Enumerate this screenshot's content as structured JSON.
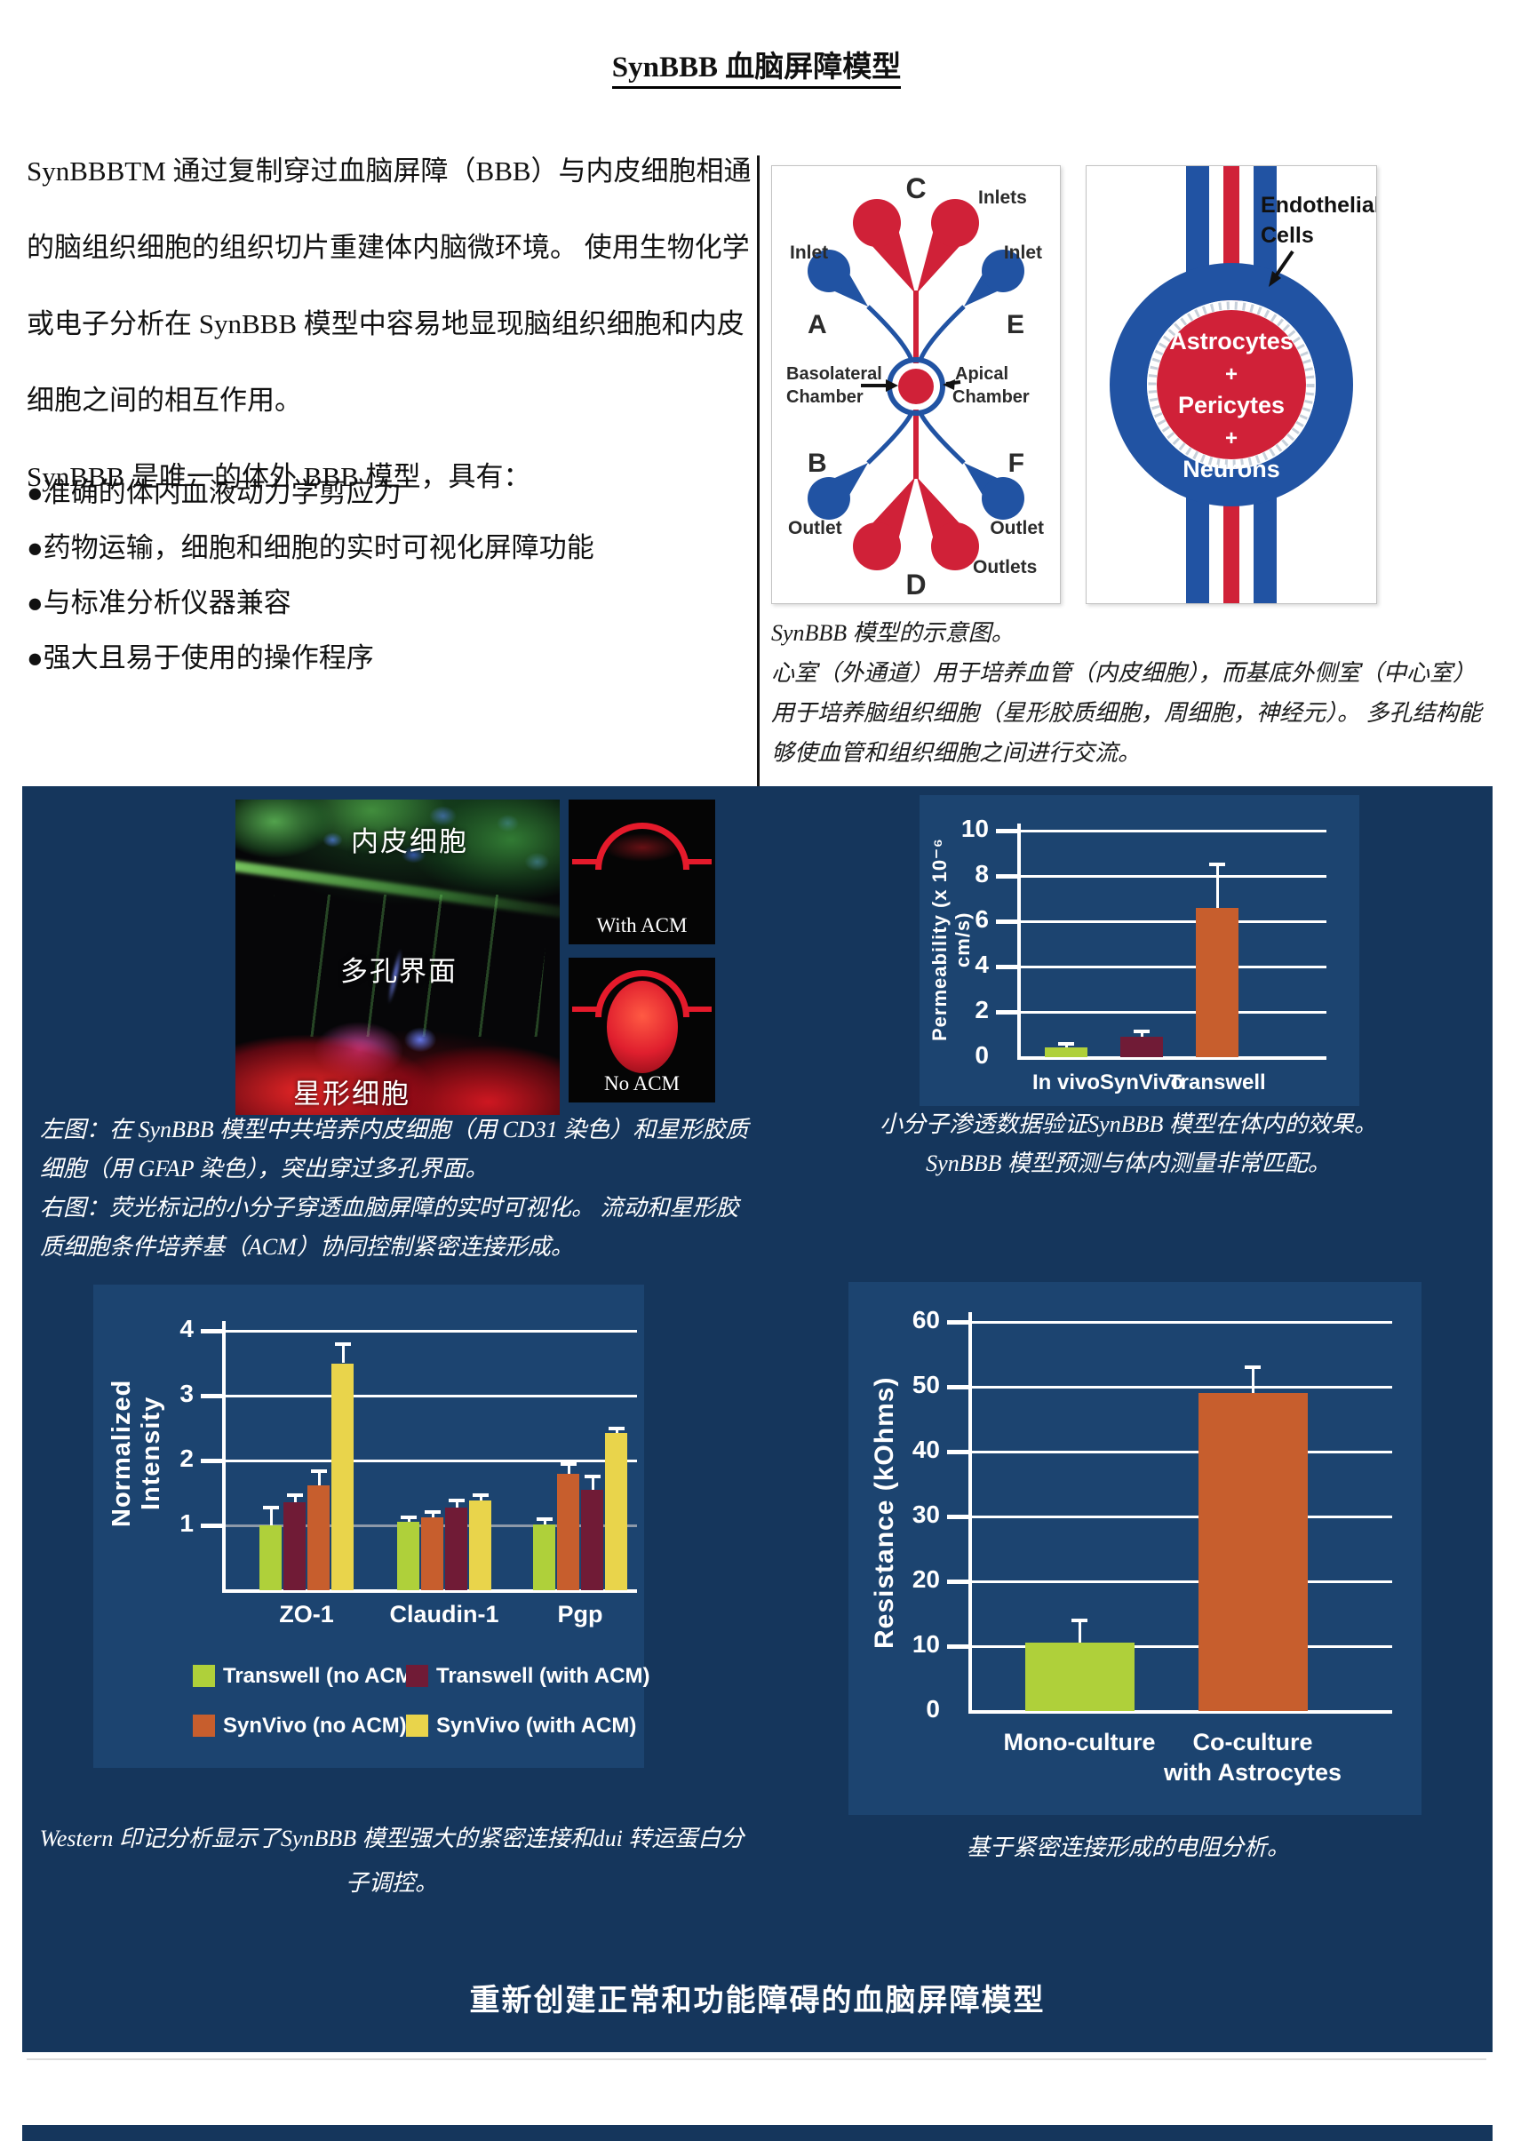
{
  "page": {
    "title": "SynBBB 血脑屏障模型",
    "bottom_banner": "重新创建正常和功能障碍的血脑屏障模型"
  },
  "palette": {
    "navy_band": "#15365C",
    "chart_panel": "#1C4470",
    "bar_green": "#AFD03A",
    "bar_maroon": "#701B36",
    "bar_orange": "#C75E2D",
    "bar_yellow": "#E9D44B",
    "diagram_red": "#D02138",
    "diagram_blue": "#2153A3",
    "gray_gridline": "#8C99A9"
  },
  "intro": {
    "lines": [
      "SynBBBTM 通过复制穿过血脑屏障（BBB）与内皮细胞相通",
      "的脑组织细胞的组织切片重建体内脑微环境。 使用生物化学",
      "或电子分析在 SynBBB 模型中容易地显现脑组织细胞和内皮",
      "细胞之间的相互作用。",
      "SynBBB 是唯一的体外 BBB 模型，具有："
    ],
    "bullets": [
      "●准确的体内血液动力学剪应力",
      "●药物运输，细胞和细胞的实时可视化屏障功能",
      "●与标准分析仪器兼容",
      "●强大且易于使用的操作程序"
    ]
  },
  "chip_diagram": {
    "c": "C",
    "inlets": "Inlets",
    "inlet_left": "Inlet",
    "inlet_right": "Inlet",
    "a": "A",
    "e": "E",
    "basolateral_1": "Basolateral",
    "basolateral_2": "Chamber",
    "apical_1": "Apical",
    "apical_2": "Chamber",
    "b": "B",
    "f": "F",
    "outlet_left": "Outlet",
    "outlet_right": "Outlet",
    "outlets": "Outlets",
    "d": "D"
  },
  "ring_diagram": {
    "endothelial_1": "Endothelial",
    "endothelial_2": "Cells",
    "center_1": "Astrocytes",
    "plus_1": "+",
    "center_2": "Pericytes",
    "plus_2": "+",
    "center_3": "Neurons"
  },
  "diagram_caption": {
    "lines": [
      "SynBBB 模型的示意图。",
      "心室（外通道）用于培养血管（内皮细胞），而基底外侧室（中心室）",
      "用于培养脑组织细胞（星形胶质细胞，周细胞，神经元）。 多孔结构能",
      "够使血管和组织细胞之间进行交流。"
    ]
  },
  "micrograph": {
    "label_top": "内皮细胞",
    "label_mid": "多孔界面",
    "label_bottom": "星形细胞",
    "acm_with": "With ACM",
    "acm_without": "No ACM"
  },
  "micrograph_caption": {
    "lines": [
      "左图：在 SynBBB 模型中共培养内皮细胞（用 CD31 染色）和星形胶质",
      "细胞（用 GFAP 染色），突出穿过多孔界面。",
      "右图：荧光标记的小分子穿透血脑屏障的实时可视化。 流动和星形胶",
      "质细胞条件培养基（ACM）协同控制紧密连接形成。"
    ]
  },
  "perm_caption": {
    "lines": [
      "小分子渗透数据验证SynBBB 模型在体内的效果。",
      "SynBBB 模型预测与体内测量非常匹配。"
    ]
  },
  "western_caption": {
    "lines": [
      "Western  印记分析显示了SynBBB 模型强大的紧密连接和dui 转运蛋白分",
      "子调控。"
    ]
  },
  "resistance_caption": "基于紧密连接形成的电阻分析。",
  "chart_data": [
    {
      "type": "bar",
      "ylabel": "Permeability (x 10⁻⁶ cm/s)",
      "categories": [
        "In vivo",
        "SynVivo",
        "Transwell"
      ],
      "values": [
        0.45,
        0.9,
        6.6
      ],
      "errors": [
        0.15,
        0.25,
        1.9
      ],
      "colors": [
        "#AFD03A",
        "#701B36",
        "#C75E2D"
      ],
      "ylim": [
        0,
        10
      ],
      "yticks": [
        0,
        2,
        4,
        6,
        8,
        10
      ],
      "grid": true,
      "legend_position": "none"
    },
    {
      "type": "grouped-bar",
      "ylabel": "Normalized Intensity",
      "categories": [
        "ZO-1",
        "Claudin-1",
        "Pgp"
      ],
      "series_legend": [
        {
          "name": "Transwell (no ACM)",
          "color": "#AFD03A"
        },
        {
          "name": "Transwell (with ACM)",
          "color": "#701B36"
        },
        {
          "name": "SynVivo (no ACM)",
          "color": "#C75E2D"
        },
        {
          "name": "SynVivo (with ACM)",
          "color": "#E9D44B"
        }
      ],
      "groups": [
        {
          "category": "ZO-1",
          "bars": [
            {
              "s": 0,
              "v": 1.0,
              "e": 0.27
            },
            {
              "s": 1,
              "v": 1.35,
              "e": 0.12
            },
            {
              "s": 2,
              "v": 1.62,
              "e": 0.22
            },
            {
              "s": 3,
              "v": 3.5,
              "e": 0.3
            }
          ]
        },
        {
          "category": "Claudin-1",
          "bars": [
            {
              "s": 0,
              "v": 1.05,
              "e": 0.07
            },
            {
              "s": 2,
              "v": 1.12,
              "e": 0.08
            },
            {
              "s": 1,
              "v": 1.28,
              "e": 0.1
            },
            {
              "s": 3,
              "v": 1.38,
              "e": 0.08
            }
          ]
        },
        {
          "category": "Pgp",
          "bars": [
            {
              "s": 0,
              "v": 1.02,
              "e": 0.08
            },
            {
              "s": 2,
              "v": 1.8,
              "e": 0.15
            },
            {
              "s": 1,
              "v": 1.55,
              "e": 0.2
            },
            {
              "s": 3,
              "v": 2.42,
              "e": 0.08
            }
          ]
        }
      ],
      "ylim": [
        0,
        4
      ],
      "yticks": [
        1,
        2,
        3,
        4
      ],
      "gray_tick": 1,
      "grid": true,
      "legend_position": "bottom"
    },
    {
      "type": "bar",
      "ylabel": "Resistance (kOhms)",
      "categories": [
        [
          "Mono-culture"
        ],
        [
          "Co-culture",
          "with Astrocytes"
        ]
      ],
      "values": [
        10.5,
        49
      ],
      "errors": [
        3.5,
        4
      ],
      "colors": [
        "#AFD03A",
        "#C75E2D"
      ],
      "ylim": [
        0,
        60
      ],
      "yticks": [
        0,
        10,
        20,
        30,
        40,
        50,
        60
      ],
      "grid": true,
      "legend_position": "none"
    }
  ]
}
